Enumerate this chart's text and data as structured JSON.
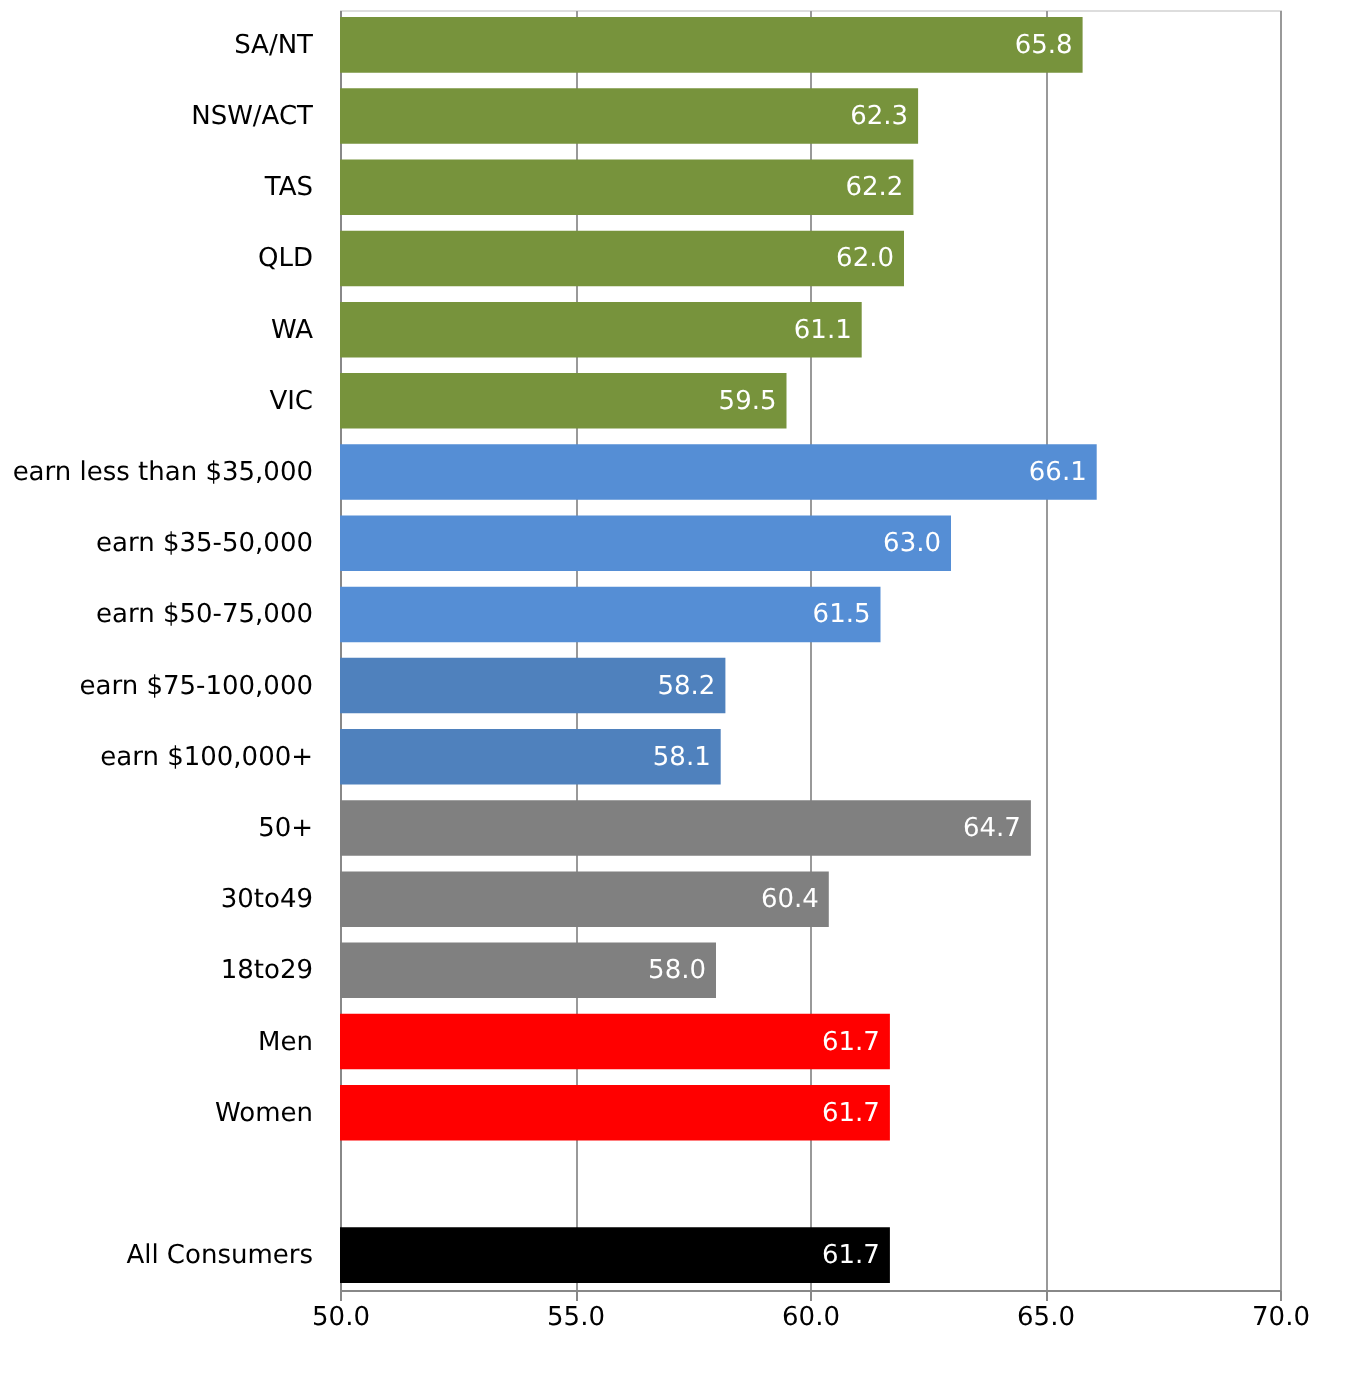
{
  "chart_data": {
    "type": "bar",
    "orientation": "horizontal",
    "categories": [
      "SA/NT",
      "NSW/ACT",
      "TAS",
      "QLD",
      "WA",
      "VIC",
      "earn less than $35,000",
      "earn $35-50,000",
      "earn $50-75,000",
      "earn $75-100,000",
      "earn $100,000+",
      "50+",
      "30to49",
      "18to29",
      "Men",
      "Women",
      null,
      "All Consumers"
    ],
    "values": [
      65.8,
      62.3,
      62.2,
      62.0,
      61.1,
      59.5,
      66.1,
      63.0,
      61.5,
      58.2,
      58.1,
      64.7,
      60.4,
      58.0,
      61.7,
      61.7,
      null,
      61.7
    ],
    "colors": [
      "#77933c",
      "#77933c",
      "#77933c",
      "#77933c",
      "#77933c",
      "#77933c",
      "#558ed5",
      "#558ed5",
      "#558ed5",
      "#4f81bd",
      "#4f81bd",
      "#808080",
      "#808080",
      "#808080",
      "#ff0000",
      "#ff0000",
      null,
      "#000000"
    ],
    "xlim": [
      50,
      70
    ],
    "xticks": [
      {
        "value": 50,
        "label": "50.0"
      },
      {
        "value": 55,
        "label": "55.0"
      },
      {
        "value": 60,
        "label": "60.0"
      },
      {
        "value": 65,
        "label": "65.0"
      },
      {
        "value": 70,
        "label": "70.0"
      }
    ],
    "value_labels": [
      "65.8",
      "62.3",
      "62.2",
      "62.0",
      "61.1",
      "59.5",
      "66.1",
      "63.0",
      "61.5",
      "58.2",
      "58.1",
      "64.7",
      "60.4",
      "58.0",
      "61.7",
      "61.7",
      null,
      "61.7"
    ],
    "grid": "x"
  }
}
